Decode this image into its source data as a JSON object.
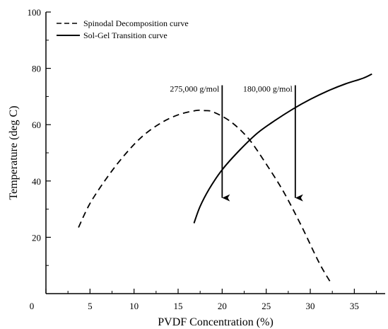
{
  "chart_data": {
    "type": "line",
    "xlabel": "PVDF Concentration (%)",
    "ylabel": "Temperature (deg C)",
    "xlim": [
      0,
      38.5
    ],
    "ylim": [
      0,
      100
    ],
    "x_ticks": [
      0,
      5,
      10,
      15,
      20,
      25,
      30,
      35
    ],
    "y_ticks": [
      20,
      40,
      60,
      80,
      100
    ],
    "grid": false,
    "legend_position": "top-left",
    "series": [
      {
        "name": "Spinodal Decomposition curve",
        "style": "dashed",
        "color": "#000000",
        "x": [
          3.7,
          5,
          7,
          9,
          11,
          13,
          15,
          17,
          18,
          19,
          21,
          23,
          25,
          27,
          29,
          31,
          32.3
        ],
        "y": [
          23.5,
          32,
          41.5,
          49.5,
          56,
          60.5,
          63.5,
          65,
          65,
          64.5,
          61,
          55,
          46,
          36,
          24,
          11,
          4
        ]
      },
      {
        "name": "Sol-Gel Transition curve",
        "style": "solid",
        "color": "#000000",
        "x": [
          16.8,
          17.5,
          18.5,
          20,
          22,
          24,
          26,
          28,
          30,
          32,
          34,
          36,
          37
        ],
        "y": [
          25,
          31,
          37,
          44,
          51,
          57,
          61.5,
          65.5,
          69,
          72,
          74.5,
          76.5,
          78
        ]
      }
    ],
    "annotations": [
      {
        "text": "275,000 g/mol",
        "arrow_x": 20,
        "arrow_y_from": 74,
        "arrow_y_to": 34
      },
      {
        "text": "180,000 g/mol",
        "arrow_x": 28.3,
        "arrow_y_from": 74,
        "arrow_y_to": 34
      }
    ]
  }
}
